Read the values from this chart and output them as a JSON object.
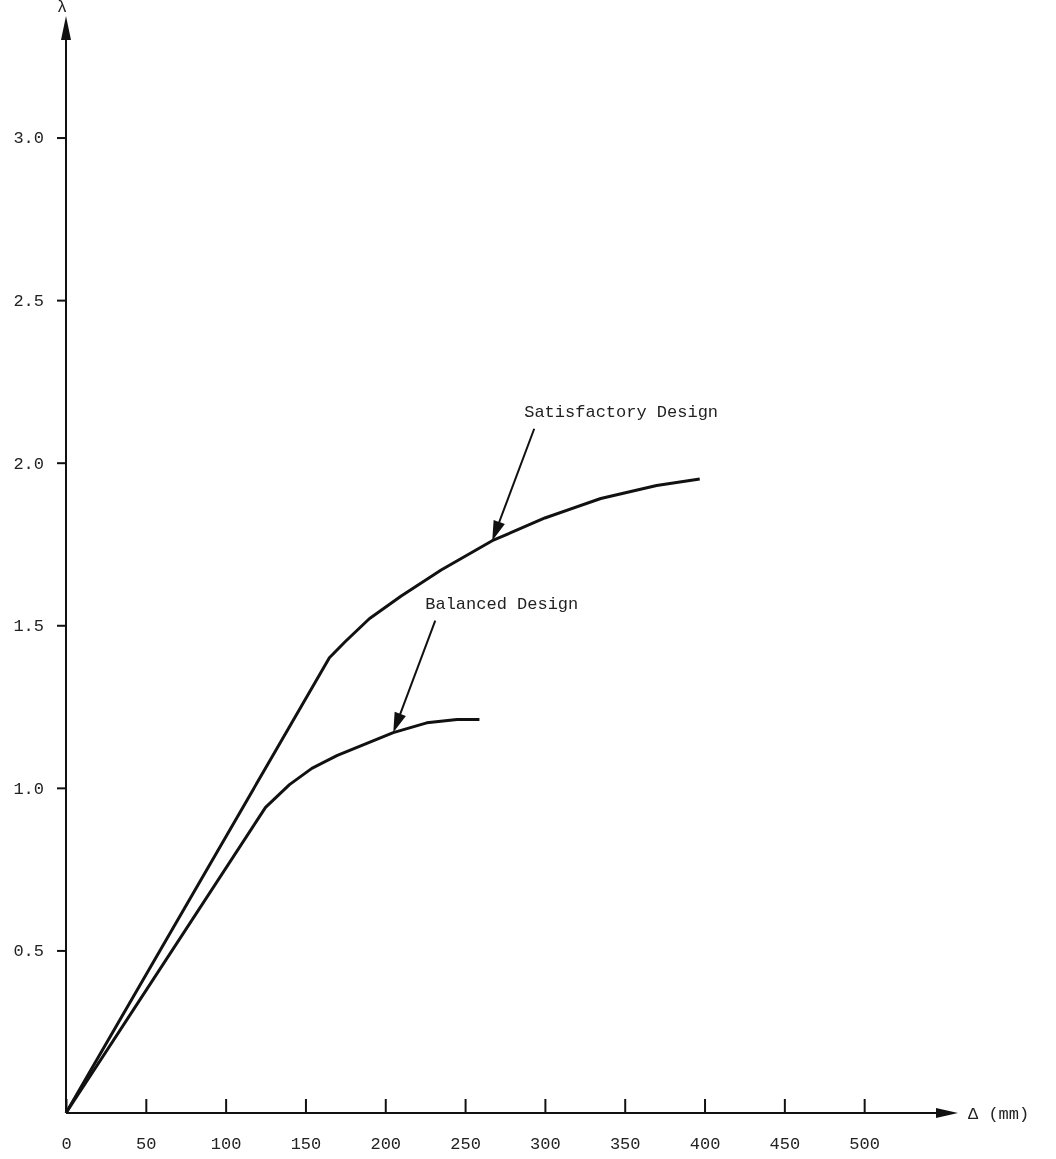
{
  "chart_data": {
    "type": "line",
    "xlabel": "Δ (mm)",
    "ylabel": "λ",
    "xlim": [
      0,
      545
    ],
    "ylim": [
      0,
      3.3
    ],
    "xticks": [
      0,
      50,
      100,
      150,
      200,
      250,
      300,
      350,
      400,
      450,
      500
    ],
    "yticks": [
      {
        "value": 0.5,
        "label": "0.5"
      },
      {
        "value": 1.0,
        "label": "1.0"
      },
      {
        "value": 1.5,
        "label": "1.5"
      },
      {
        "value": 2.0,
        "label": "2.0"
      },
      {
        "value": 2.5,
        "label": "2.5"
      },
      {
        "value": 3.0,
        "label": "3.0"
      }
    ],
    "grid": false,
    "marker": "none",
    "line_style": "solid",
    "series": [
      {
        "color": "#111111",
        "x": [
          0,
          165,
          175,
          190,
          210,
          235,
          267,
          300,
          335,
          370,
          397
        ],
        "values": [
          0,
          1.4,
          1.45,
          1.52,
          1.59,
          1.67,
          1.76,
          1.83,
          1.89,
          1.93,
          1.95
        ]
      },
      {
        "color": "#111111",
        "x": [
          0,
          125,
          140,
          154,
          170,
          185,
          205,
          226,
          245,
          259
        ],
        "values": [
          0,
          0.94,
          1.01,
          1.06,
          1.1,
          1.13,
          1.17,
          1.2,
          1.21,
          1.21
        ]
      }
    ],
    "annotations": [
      "Satisfactory Design",
      "Balanced Design"
    ]
  }
}
